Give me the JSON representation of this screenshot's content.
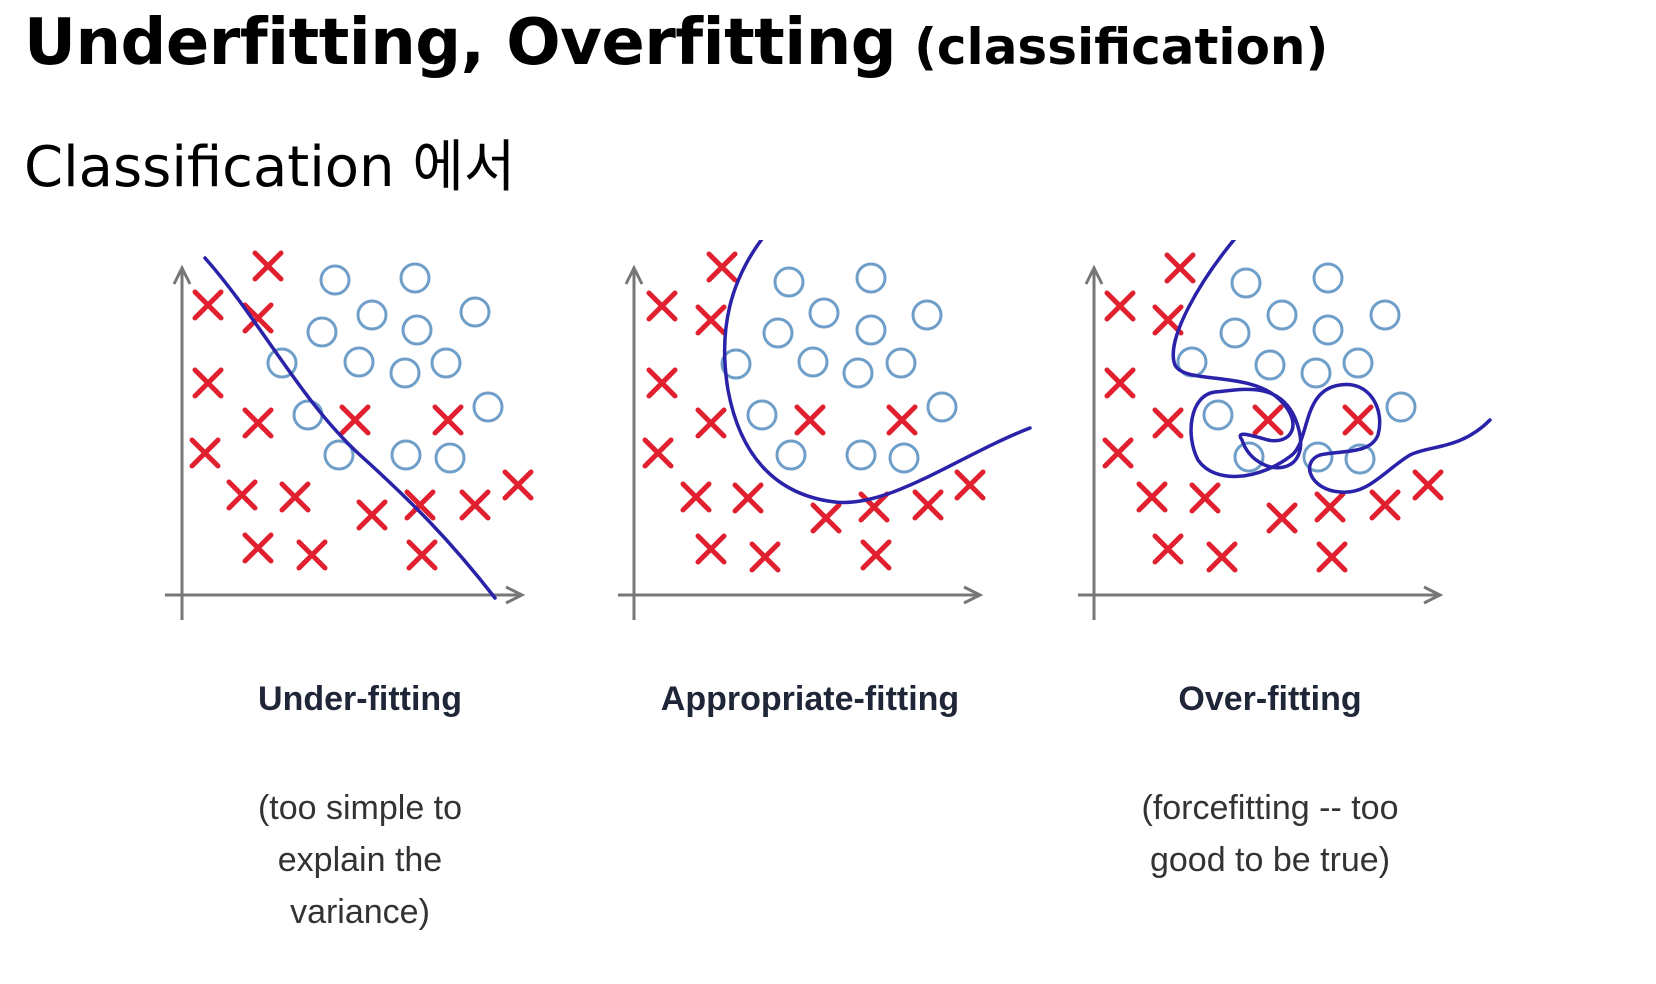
{
  "header": {
    "title_main": "Underfitting, Overfitting",
    "title_sub": "(classification)",
    "subtitle": "Classification 에서"
  },
  "colors": {
    "cross": "#e0202e",
    "circle": "#6f9fc9",
    "boundary": "#2a22a8",
    "axis": "#777777"
  },
  "panels": [
    {
      "label": "Under-fitting",
      "note": "(too simple to\nexplain the\nvariance)"
    },
    {
      "label": "Appropriate-fitting",
      "note": ""
    },
    {
      "label": "Over-fitting",
      "note": "(forcefitting -- too\ngood to be true)"
    }
  ]
}
